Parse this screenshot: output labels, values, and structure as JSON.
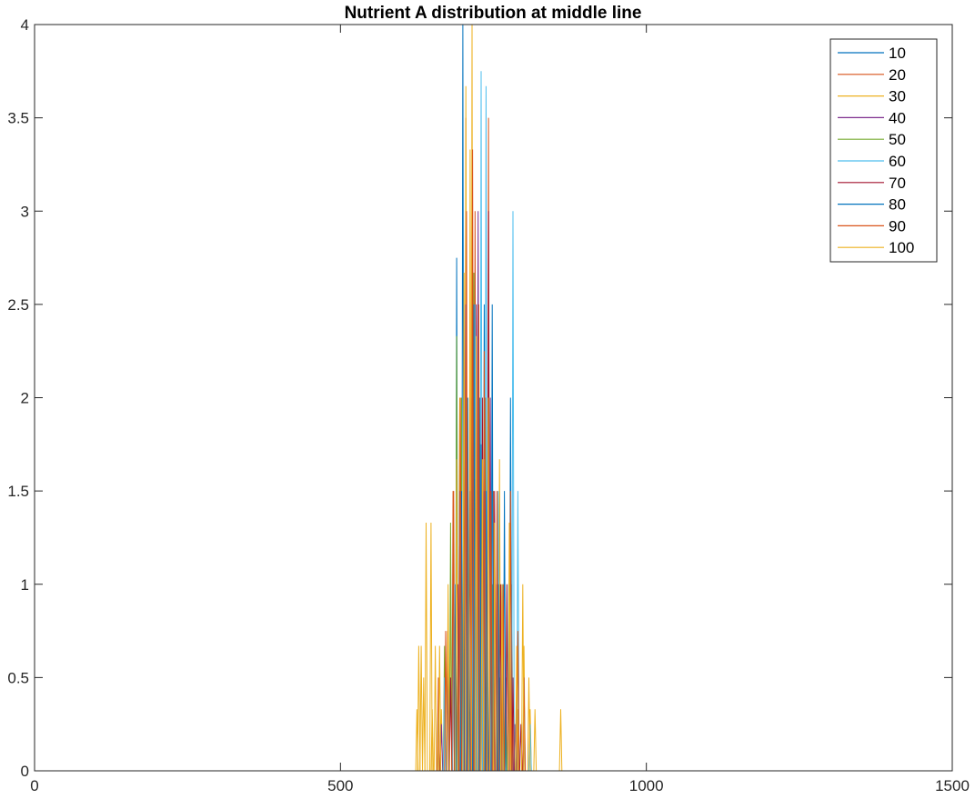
{
  "chart_data": {
    "type": "line",
    "title": "Nutrient A distribution at middle line",
    "xlabel": "",
    "ylabel": "",
    "xlim": [
      0,
      1500
    ],
    "ylim": [
      0,
      4
    ],
    "x_ticks": [
      "0",
      "500",
      "1000",
      "1500"
    ],
    "y_ticks": [
      "0",
      "0.5",
      "1",
      "1.5",
      "2",
      "2.5",
      "3",
      "3.5",
      "4"
    ],
    "grid": false,
    "legend_position": "top-right",
    "series": [
      {
        "name": "10",
        "color": "#0072BD",
        "peaks": [
          [
            690,
            2.75
          ],
          [
            695,
            1.5
          ],
          [
            700,
            4.0
          ],
          [
            705,
            2.5
          ],
          [
            710,
            1.0
          ],
          [
            715,
            3.0
          ],
          [
            720,
            2.0
          ],
          [
            725,
            1.5
          ],
          [
            730,
            1.75
          ],
          [
            735,
            2.5
          ],
          [
            740,
            1.0
          ],
          [
            745,
            0.75
          ],
          [
            750,
            1.25
          ],
          [
            760,
            0.5
          ]
        ]
      },
      {
        "name": "20",
        "color": "#D95319",
        "peaks": [
          [
            675,
            0.75
          ],
          [
            685,
            1.5
          ],
          [
            695,
            2.0
          ],
          [
            705,
            3.5
          ],
          [
            712,
            2.5
          ],
          [
            720,
            3.0
          ],
          [
            728,
            1.75
          ],
          [
            735,
            2.25
          ],
          [
            742,
            3.5
          ],
          [
            750,
            1.5
          ],
          [
            760,
            1.0
          ],
          [
            770,
            0.5
          ],
          [
            780,
            1.0
          ],
          [
            790,
            0.25
          ]
        ]
      },
      {
        "name": "30",
        "color": "#EDB120",
        "peaks": [
          [
            625,
            0.33
          ],
          [
            632,
            0.67
          ],
          [
            640,
            1.33
          ],
          [
            648,
            1.33
          ],
          [
            655,
            0.67
          ],
          [
            665,
            0.33
          ],
          [
            680,
            1.0
          ],
          [
            695,
            2.0
          ],
          [
            705,
            3.67
          ],
          [
            715,
            4.0
          ],
          [
            725,
            2.33
          ],
          [
            735,
            1.67
          ],
          [
            745,
            1.0
          ],
          [
            760,
            1.67
          ],
          [
            775,
            0.67
          ],
          [
            790,
            0.33
          ],
          [
            800,
            0.67
          ],
          [
            810,
            0.33
          ],
          [
            860,
            0.33
          ]
        ]
      },
      {
        "name": "40",
        "color": "#7E2F8E",
        "peaks": [
          [
            665,
            0.25
          ],
          [
            675,
            0.5
          ],
          [
            685,
            1.0
          ],
          [
            695,
            1.5
          ],
          [
            705,
            2.5
          ],
          [
            715,
            2.0
          ],
          [
            725,
            3.0
          ],
          [
            735,
            1.5
          ],
          [
            745,
            2.0
          ],
          [
            755,
            1.0
          ],
          [
            765,
            0.75
          ],
          [
            775,
            0.5
          ],
          [
            785,
            0.25
          ]
        ]
      },
      {
        "name": "50",
        "color": "#77AC30",
        "peaks": [
          [
            660,
            0.33
          ],
          [
            670,
            0.67
          ],
          [
            680,
            1.33
          ],
          [
            690,
            2.33
          ],
          [
            698,
            2.0
          ],
          [
            708,
            1.67
          ],
          [
            718,
            2.67
          ],
          [
            728,
            1.33
          ],
          [
            738,
            2.0
          ],
          [
            748,
            1.0
          ],
          [
            758,
            0.67
          ],
          [
            770,
            0.33
          ]
        ]
      },
      {
        "name": "60",
        "color": "#4DBEEE",
        "peaks": [
          [
            670,
            0.5
          ],
          [
            685,
            1.0
          ],
          [
            698,
            1.5
          ],
          [
            708,
            2.0
          ],
          [
            720,
            2.5
          ],
          [
            730,
            3.75
          ],
          [
            738,
            3.67
          ],
          [
            748,
            2.0
          ],
          [
            758,
            1.5
          ],
          [
            765,
            1.0
          ],
          [
            775,
            1.0
          ],
          [
            782,
            3.0
          ],
          [
            790,
            1.5
          ],
          [
            800,
            0.5
          ],
          [
            810,
            0.25
          ]
        ]
      },
      {
        "name": "70",
        "color": "#A2142F",
        "peaks": [
          [
            680,
            0.5
          ],
          [
            692,
            1.0
          ],
          [
            702,
            2.0
          ],
          [
            712,
            1.5
          ],
          [
            722,
            2.5
          ],
          [
            732,
            2.0
          ],
          [
            742,
            3.0
          ],
          [
            752,
            1.5
          ],
          [
            762,
            1.0
          ],
          [
            772,
            1.0
          ],
          [
            782,
            0.5
          ],
          [
            795,
            0.25
          ]
        ]
      },
      {
        "name": "80",
        "color": "#0072BD",
        "peaks": [
          [
            688,
            1.0
          ],
          [
            698,
            1.5
          ],
          [
            708,
            2.0
          ],
          [
            718,
            2.5
          ],
          [
            728,
            2.0
          ],
          [
            738,
            1.5
          ],
          [
            748,
            2.5
          ],
          [
            758,
            1.0
          ],
          [
            768,
            1.5
          ],
          [
            778,
            2.0
          ],
          [
            788,
            0.5
          ]
        ]
      },
      {
        "name": "90",
        "color": "#D95319",
        "peaks": [
          [
            660,
            0.5
          ],
          [
            672,
            0.75
          ],
          [
            684,
            1.5
          ],
          [
            696,
            2.0
          ],
          [
            706,
            3.0
          ],
          [
            716,
            3.33
          ],
          [
            726,
            2.5
          ],
          [
            736,
            2.0
          ],
          [
            746,
            1.5
          ],
          [
            756,
            1.5
          ],
          [
            766,
            1.0
          ],
          [
            778,
            1.5
          ],
          [
            790,
            0.75
          ],
          [
            800,
            0.5
          ]
        ]
      },
      {
        "name": "100",
        "color": "#EDB120",
        "peaks": [
          [
            628,
            0.67
          ],
          [
            636,
            0.5
          ],
          [
            650,
            0.33
          ],
          [
            662,
            0.67
          ],
          [
            676,
            1.0
          ],
          [
            690,
            1.67
          ],
          [
            702,
            2.67
          ],
          [
            712,
            3.33
          ],
          [
            722,
            2.33
          ],
          [
            732,
            1.67
          ],
          [
            742,
            2.0
          ],
          [
            752,
            1.33
          ],
          [
            764,
            1.0
          ],
          [
            776,
            1.33
          ],
          [
            788,
            0.67
          ],
          [
            798,
            1.0
          ],
          [
            808,
            0.5
          ],
          [
            818,
            0.33
          ]
        ]
      }
    ]
  }
}
